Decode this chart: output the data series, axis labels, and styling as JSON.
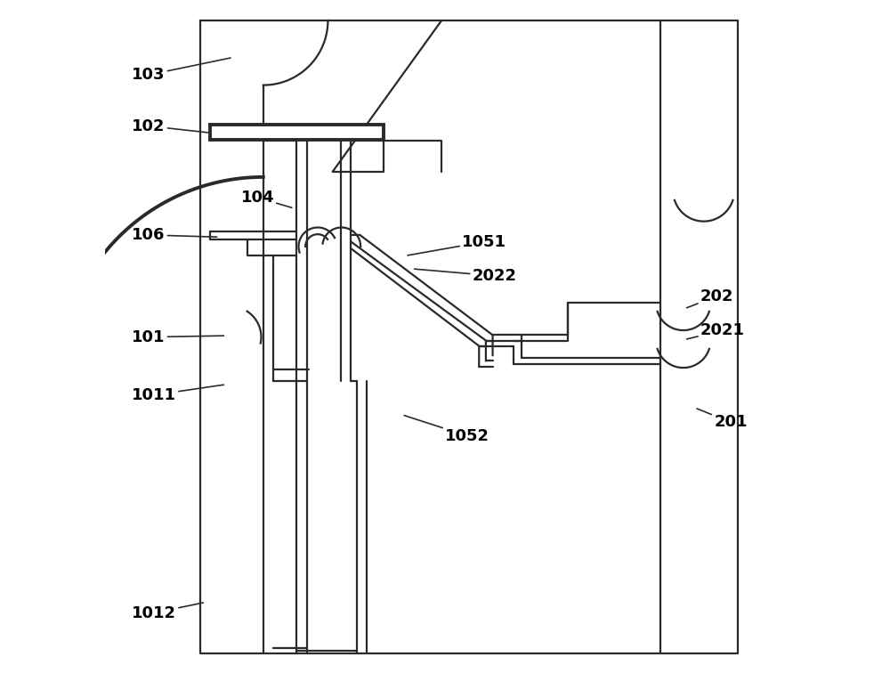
{
  "bg_color": "#ffffff",
  "lc": "#2a2a2a",
  "lw": 1.6,
  "lw_thick": 2.8,
  "fs": 13,
  "fw": "bold",
  "border": [
    0.14,
    0.04,
    0.93,
    0.97
  ],
  "plate_102": [
    0.155,
    0.795,
    0.255,
    0.022
  ],
  "labels": {
    "103": [
      0.04,
      0.89,
      0.185,
      0.915
    ],
    "102": [
      0.04,
      0.815,
      0.155,
      0.805
    ],
    "104": [
      0.2,
      0.71,
      0.275,
      0.695
    ],
    "106": [
      0.04,
      0.655,
      0.165,
      0.652
    ],
    "101": [
      0.04,
      0.505,
      0.175,
      0.507
    ],
    "1011": [
      0.04,
      0.42,
      0.175,
      0.435
    ],
    "1012": [
      0.04,
      0.1,
      0.145,
      0.115
    ],
    "1051": [
      0.525,
      0.645,
      0.445,
      0.625
    ],
    "2022": [
      0.54,
      0.595,
      0.455,
      0.605
    ],
    "1052": [
      0.5,
      0.36,
      0.44,
      0.39
    ],
    "201": [
      0.895,
      0.38,
      0.87,
      0.4
    ],
    "202": [
      0.875,
      0.565,
      0.855,
      0.548
    ],
    "2021": [
      0.875,
      0.515,
      0.855,
      0.502
    ]
  }
}
